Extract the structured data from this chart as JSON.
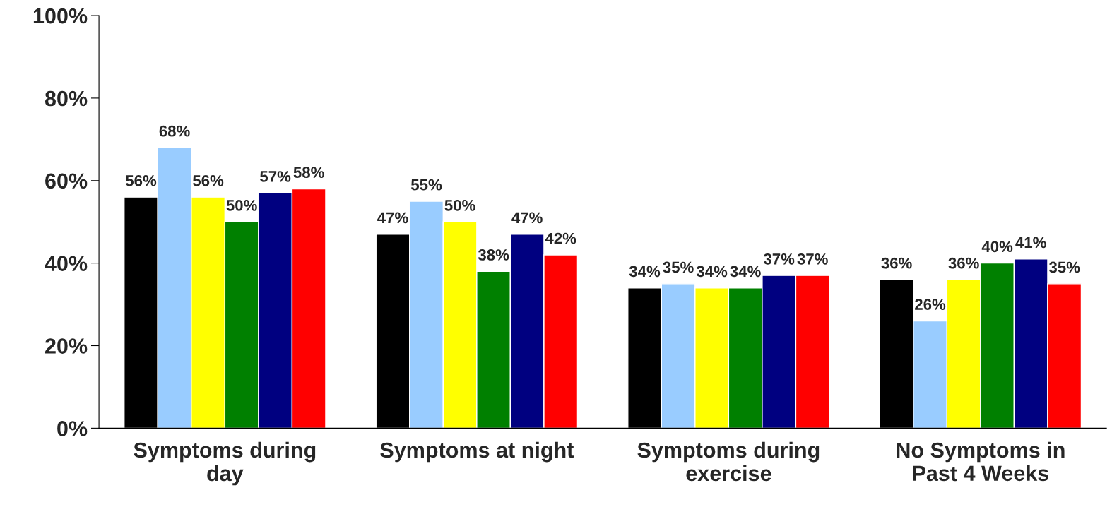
{
  "chart_data": {
    "type": "bar",
    "categories": [
      "Symptoms during day",
      "Symptoms at night",
      "Symptoms during exercise",
      "No Symptoms in Past 4 Weeks"
    ],
    "series": [
      {
        "color": "#000000",
        "values": [
          56,
          47,
          34,
          36
        ],
        "value_labels": [
          "56%",
          "47%",
          "34%",
          "36%"
        ]
      },
      {
        "color": "#99ccff",
        "values": [
          68,
          55,
          35,
          26
        ],
        "value_labels": [
          "68%",
          "55%",
          "35%",
          "26%"
        ]
      },
      {
        "color": "#ffff00",
        "values": [
          56,
          50,
          34,
          36
        ],
        "value_labels": [
          "56%",
          "50%",
          "34%",
          "36%"
        ]
      },
      {
        "color": "#008000",
        "values": [
          50,
          38,
          34,
          40
        ],
        "value_labels": [
          "50%",
          "38%",
          "34%",
          "40%"
        ]
      },
      {
        "color": "#000080",
        "values": [
          57,
          47,
          37,
          41
        ],
        "value_labels": [
          "57%",
          "47%",
          "37%",
          "41%"
        ]
      },
      {
        "color": "#ff0000",
        "values": [
          58,
          42,
          37,
          35
        ],
        "value_labels": [
          "58%",
          "42%",
          "37%",
          "35%"
        ]
      }
    ],
    "ylim": [
      0,
      100
    ],
    "yticks": [
      {
        "value": 0,
        "label": "0%"
      },
      {
        "value": 20,
        "label": "20%"
      },
      {
        "value": 40,
        "label": "40%"
      },
      {
        "value": 60,
        "label": "60%"
      },
      {
        "value": 80,
        "label": "80%"
      },
      {
        "value": 100,
        "label": "100%"
      }
    ],
    "grid": false,
    "legend": false
  }
}
